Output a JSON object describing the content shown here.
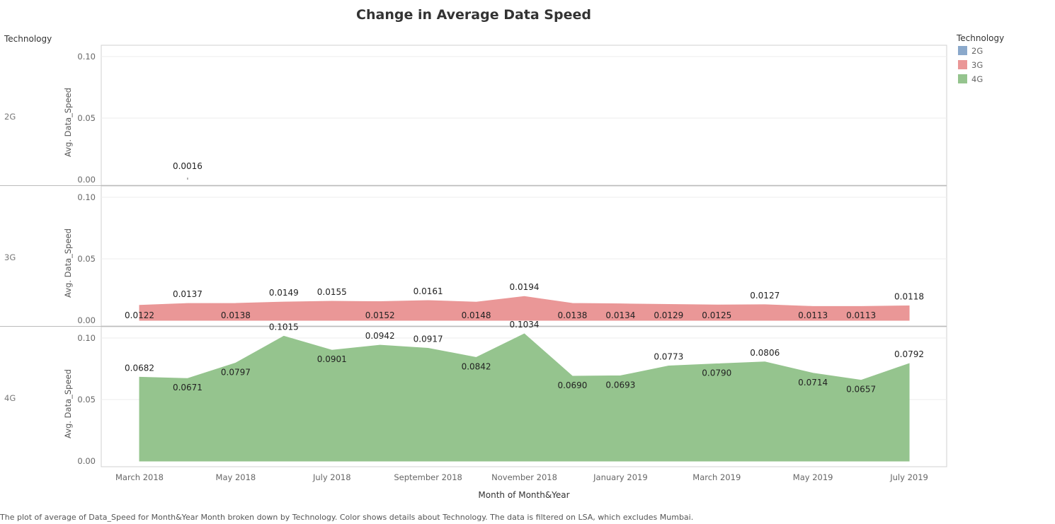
{
  "chart_data": {
    "type": "area",
    "title": "Change in Average Data Speed",
    "row_header": "Technology",
    "xlabel": "Month of Month&Year",
    "ylabel": "Avg. Data_Speed",
    "ylim": [
      0,
      0.11
    ],
    "y_ticks": [
      "0.10",
      "0.05",
      "0.00"
    ],
    "x_tick_labels": [
      "March 2018",
      "May 2018",
      "July 2018",
      "September 2018",
      "November 2018",
      "January 2019",
      "March 2019",
      "May 2019",
      "July 2019"
    ],
    "months": [
      "March 2018",
      "April 2018",
      "May 2018",
      "June 2018",
      "July 2018",
      "August 2018",
      "September 2018",
      "October 2018",
      "November 2018",
      "December 2018",
      "January 2019",
      "February 2019",
      "March 2019",
      "April 2019",
      "May 2019",
      "June 2019",
      "July 2019"
    ],
    "grid": true,
    "legend": {
      "title": "Technology",
      "placement": "top-right"
    },
    "series": [
      {
        "name": "2G",
        "color": "#8ba9cb",
        "values": [
          null,
          0.0016,
          null,
          null,
          null,
          null,
          null,
          null,
          null,
          null,
          null,
          null,
          null,
          null,
          null,
          null,
          null
        ],
        "labels": [
          null,
          "0.0016",
          null,
          null,
          null,
          null,
          null,
          null,
          null,
          null,
          null,
          null,
          null,
          null,
          null,
          null,
          null
        ]
      },
      {
        "name": "3G",
        "color": "#ea9797",
        "values": [
          0.0122,
          0.0137,
          0.0138,
          0.0149,
          0.0155,
          0.0152,
          0.0161,
          0.0148,
          0.0194,
          0.0138,
          0.0134,
          0.0129,
          0.0125,
          0.0127,
          0.0113,
          0.0113,
          0.0118
        ],
        "labels": [
          "0.0122",
          "0.0137",
          "0.0138",
          "0.0149",
          "0.0155",
          "0.0152",
          "0.0161",
          "0.0148",
          "0.0194",
          "0.0138",
          "0.0134",
          "0.0129",
          "0.0125",
          "0.0127",
          "0.0113",
          "0.0113",
          "0.0118"
        ]
      },
      {
        "name": "4G",
        "color": "#95c48e",
        "values": [
          0.0682,
          0.0671,
          0.0797,
          0.1015,
          0.0901,
          0.0942,
          0.0917,
          0.0842,
          0.1034,
          0.069,
          0.0693,
          0.0773,
          0.079,
          0.0806,
          0.0714,
          0.0657,
          0.0792
        ],
        "labels": [
          "0.0682",
          "0.0671",
          "0.0797",
          "0.1015",
          "0.0901",
          "0.0942",
          "0.0917",
          "0.0842",
          "0.1034",
          "0.0690",
          "0.0693",
          "0.0773",
          "0.0790",
          "0.0806",
          "0.0714",
          "0.0657",
          "0.0792"
        ]
      }
    ],
    "caption": "The plot of average of Data_Speed for Month&Year Month broken down by Technology.  Color shows details about Technology. The data is filtered on LSA, which excludes Mumbai."
  }
}
